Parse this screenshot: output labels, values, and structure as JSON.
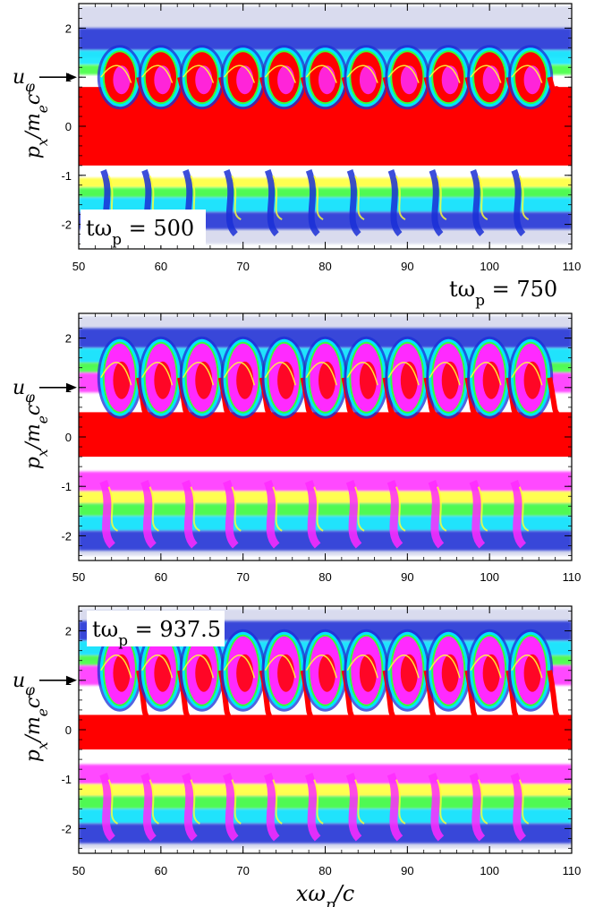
{
  "chart_data": [
    {
      "type": "heatmap",
      "panel_label": "tω_p = 500",
      "xlim": [
        50,
        110
      ],
      "ylim": [
        -2.5,
        2.5
      ],
      "x_ticks": [
        "50",
        "60",
        "70",
        "80",
        "90",
        "100",
        "110"
      ],
      "y_ticks": [
        "-2",
        "-1",
        "0",
        "1",
        "2"
      ],
      "xlabel": "",
      "ylabel": "p_x/m_ec",
      "marker": {
        "label": "u_φ",
        "y": 1.0
      },
      "wave_crests": [
        55,
        60,
        65,
        70,
        75,
        80,
        85,
        90,
        95,
        100,
        105
      ],
      "core_band": [
        -0.8,
        0.8
      ]
    },
    {
      "type": "heatmap",
      "panel_label": "tω_p = 750",
      "xlim": [
        50,
        110
      ],
      "ylim": [
        -2.5,
        2.5
      ],
      "x_ticks": [
        "50",
        "60",
        "70",
        "80",
        "90",
        "100",
        "110"
      ],
      "y_ticks": [
        "-2",
        "-1",
        "0",
        "1",
        "2"
      ],
      "xlabel": "",
      "ylabel": "p_x/m_ec",
      "marker": {
        "label": "u_φ",
        "y": 1.0
      },
      "wave_crests": [
        55,
        60,
        65,
        70,
        75,
        80,
        85,
        90,
        95,
        100,
        105
      ],
      "core_band": [
        -0.4,
        0.5
      ]
    },
    {
      "type": "heatmap",
      "panel_label": "tω_p = 937.5",
      "xlim": [
        50,
        110
      ],
      "ylim": [
        -2.5,
        2.5
      ],
      "x_ticks": [
        "50",
        "60",
        "70",
        "80",
        "90",
        "100",
        "110"
      ],
      "y_ticks": [
        "-2",
        "-1",
        "0",
        "1",
        "2"
      ],
      "xlabel": "xω_p/c",
      "ylabel": "p_x/m_ec",
      "marker": {
        "label": "u_φ",
        "y": 1.0
      },
      "wave_crests": [
        55,
        60,
        65,
        70,
        75,
        80,
        85,
        90,
        95,
        100,
        105
      ],
      "core_band": [
        -0.4,
        0.3
      ]
    }
  ],
  "colors": {
    "core": "#ff0000",
    "halo": "#ff2aff",
    "cyan": "#00e5ff",
    "green": "#38ff38",
    "yellow": "#ffff33",
    "blue": "#1a2fd6",
    "pale": "#c9cde8"
  }
}
